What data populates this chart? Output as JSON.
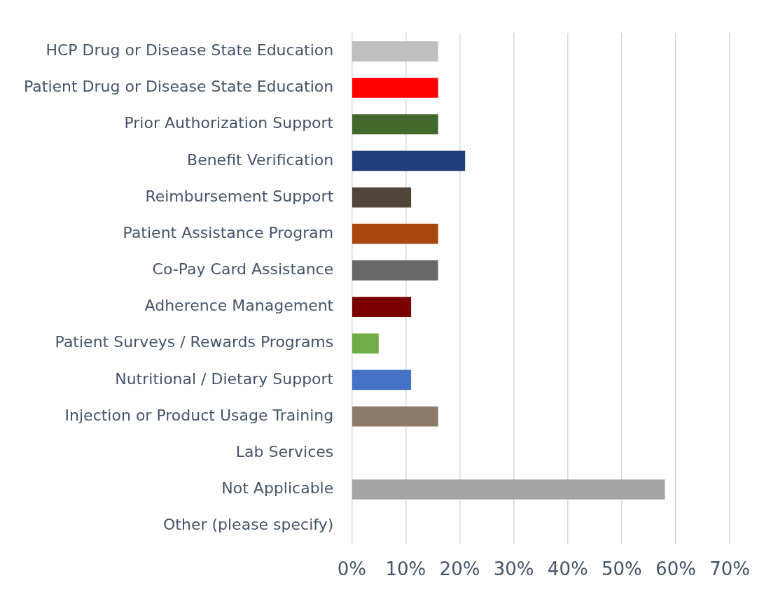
{
  "chart_data": {
    "type": "bar",
    "orientation": "horizontal",
    "categories": [
      "HCP Drug or Disease State Education",
      "Patient Drug or Disease State Education",
      "Prior Authorization Support",
      "Benefit Verification",
      "Reimbursement Support",
      "Patient Assistance Program",
      "Co-Pay Card Assistance",
      "Adherence Management",
      "Patient Surveys / Rewards Programs",
      "Nutritional / Dietary Support",
      "Injection or Product Usage Training",
      "Lab Services",
      "Not Applicable",
      "Other (please specify)"
    ],
    "values": [
      16,
      16,
      16,
      21,
      11,
      16,
      16,
      11,
      5,
      11,
      16,
      0,
      58,
      0
    ],
    "colors": [
      "#bfbfbf",
      "#ff0000",
      "#43682b",
      "#1f3f7a",
      "#4f4538",
      "#a9470f",
      "#686868",
      "#7a0000",
      "#70ad47",
      "#4472c4",
      "#8c7b6b",
      "#a5a5a5",
      "#a5a5a5",
      "#a5a5a5"
    ],
    "xlim": [
      0,
      70
    ],
    "xticks": [
      {
        "value": 0,
        "label": "0%"
      },
      {
        "value": 10,
        "label": "10%"
      },
      {
        "value": 20,
        "label": "20%"
      },
      {
        "value": 30,
        "label": "30%"
      },
      {
        "value": 40,
        "label": "40%"
      },
      {
        "value": 50,
        "label": "50%"
      },
      {
        "value": 60,
        "label": "60%"
      },
      {
        "value": 70,
        "label": "70%"
      }
    ],
    "grid": "x",
    "legend": false
  }
}
